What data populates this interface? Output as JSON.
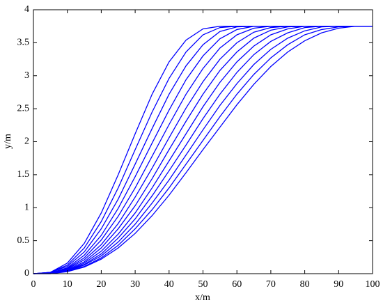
{
  "chart_data": {
    "type": "line",
    "xlabel": "x/m",
    "ylabel": "y/m",
    "color": "#0000ff",
    "xlim": [
      0,
      100
    ],
    "ylim": [
      0,
      4
    ],
    "xticks": [
      0,
      10,
      20,
      30,
      40,
      50,
      60,
      70,
      80,
      90,
      100
    ],
    "yticks": [
      0,
      0.5,
      1,
      1.5,
      2,
      2.5,
      3,
      3.5,
      4
    ],
    "x": [
      0,
      5,
      10,
      15,
      20,
      25,
      30,
      35,
      40,
      45,
      50,
      55,
      60,
      65,
      70,
      75,
      80,
      85,
      90,
      95,
      100
    ],
    "series": [
      {
        "values": [
          0,
          0.02,
          0.16,
          0.46,
          0.92,
          1.5,
          2.12,
          2.72,
          3.21,
          3.54,
          3.71,
          3.75,
          3.75,
          3.75,
          3.75,
          3.75,
          3.75,
          3.75,
          3.75,
          3.75,
          3.75
        ]
      },
      {
        "values": [
          0,
          0.02,
          0.13,
          0.39,
          0.79,
          1.3,
          1.88,
          2.45,
          2.96,
          3.36,
          3.62,
          3.73,
          3.75,
          3.75,
          3.75,
          3.75,
          3.75,
          3.75,
          3.75,
          3.75,
          3.75
        ]
      },
      {
        "values": [
          0,
          0.02,
          0.11,
          0.33,
          0.68,
          1.13,
          1.66,
          2.2,
          2.72,
          3.15,
          3.47,
          3.67,
          3.74,
          3.75,
          3.75,
          3.75,
          3.75,
          3.75,
          3.75,
          3.75,
          3.75
        ]
      },
      {
        "values": [
          0,
          0.01,
          0.09,
          0.28,
          0.58,
          0.99,
          1.47,
          1.98,
          2.48,
          2.94,
          3.3,
          3.56,
          3.7,
          3.75,
          3.75,
          3.75,
          3.75,
          3.75,
          3.75,
          3.75,
          3.75
        ]
      },
      {
        "values": [
          0,
          0.01,
          0.08,
          0.24,
          0.51,
          0.87,
          1.3,
          1.78,
          2.26,
          2.72,
          3.11,
          3.42,
          3.62,
          3.72,
          3.75,
          3.75,
          3.75,
          3.75,
          3.75,
          3.75,
          3.75
        ]
      },
      {
        "values": [
          0,
          0.01,
          0.07,
          0.21,
          0.44,
          0.76,
          1.16,
          1.6,
          2.06,
          2.51,
          2.91,
          3.25,
          3.5,
          3.66,
          3.73,
          3.75,
          3.75,
          3.75,
          3.75,
          3.75,
          3.75
        ]
      },
      {
        "values": [
          0,
          0.01,
          0.06,
          0.18,
          0.39,
          0.68,
          1.03,
          1.44,
          1.88,
          2.31,
          2.72,
          3.08,
          3.36,
          3.57,
          3.69,
          3.74,
          3.75,
          3.75,
          3.75,
          3.75,
          3.75
        ]
      },
      {
        "values": [
          0,
          0.01,
          0.05,
          0.16,
          0.34,
          0.6,
          0.92,
          1.3,
          1.71,
          2.12,
          2.53,
          2.9,
          3.21,
          3.45,
          3.62,
          3.71,
          3.75,
          3.75,
          3.75,
          3.75,
          3.75
        ]
      },
      {
        "values": [
          0,
          0.01,
          0.05,
          0.14,
          0.3,
          0.54,
          0.83,
          1.18,
          1.56,
          1.95,
          2.35,
          2.72,
          3.05,
          3.32,
          3.52,
          3.65,
          3.73,
          3.75,
          3.75,
          3.75,
          3.75
        ]
      },
      {
        "values": [
          0,
          0.01,
          0.04,
          0.13,
          0.27,
          0.48,
          0.75,
          1.07,
          1.42,
          1.8,
          2.18,
          2.55,
          2.88,
          3.17,
          3.4,
          3.57,
          3.68,
          3.74,
          3.75,
          3.75,
          3.75
        ]
      },
      {
        "values": [
          0,
          0,
          0.04,
          0.11,
          0.24,
          0.43,
          0.68,
          0.97,
          1.3,
          1.66,
          2.02,
          2.38,
          2.72,
          3.02,
          3.27,
          3.47,
          3.62,
          3.7,
          3.74,
          3.75,
          3.75
        ]
      },
      {
        "values": [
          0,
          0,
          0.03,
          0.1,
          0.22,
          0.39,
          0.61,
          0.88,
          1.19,
          1.53,
          1.88,
          2.22,
          2.56,
          2.87,
          3.14,
          3.36,
          3.53,
          3.65,
          3.72,
          3.75,
          3.75
        ]
      }
    ]
  }
}
